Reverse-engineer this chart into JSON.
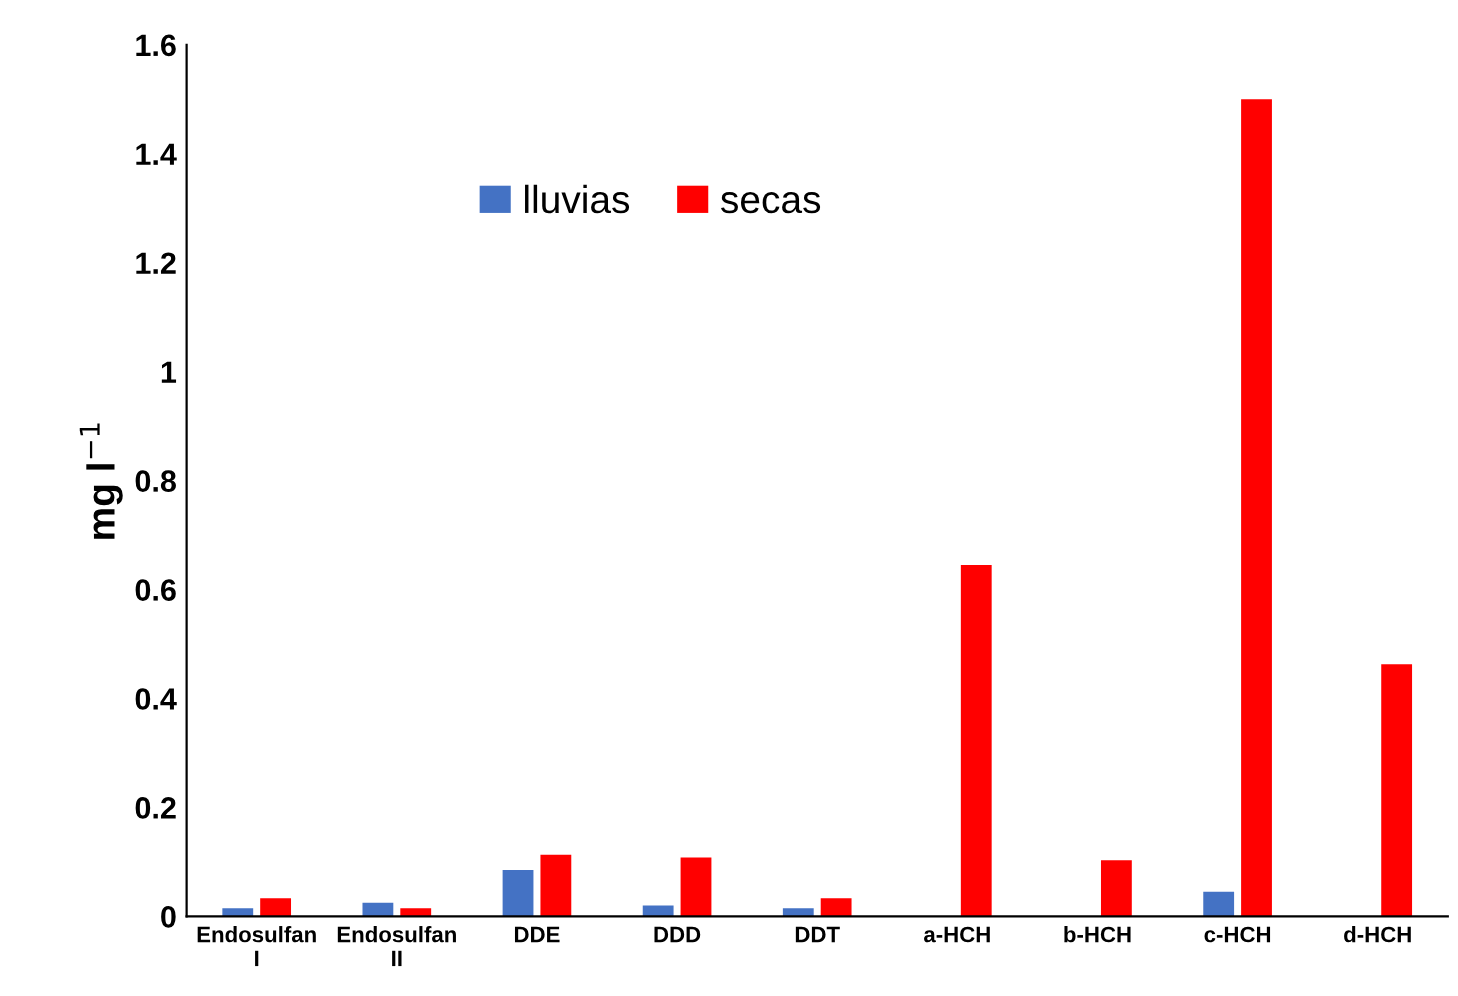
{
  "chart_data": {
    "type": "bar",
    "ylabel": "mg l$^{−1}$",
    "categories": [
      "Endosulfan\nI",
      "Endosulfan\nII",
      "DDE",
      "DDD",
      "DDT",
      "a-HCH",
      "b-HCH",
      "c-HCH",
      "d-HCH"
    ],
    "series": [
      {
        "name": "lluvias",
        "color": "#4472c4",
        "values": [
          0.015,
          0.025,
          0.085,
          0.02,
          0.015,
          null,
          null,
          0.045,
          null
        ]
      },
      {
        "name": "secas",
        "color": "#ff0000",
        "values": [
          0.033,
          0.015,
          0.113,
          0.108,
          0.033,
          0.645,
          0.103,
          1.5,
          0.463
        ]
      }
    ],
    "ylim": [
      0,
      1.6
    ],
    "yticks": [
      0,
      0.2,
      0.4,
      0.6,
      0.8,
      1,
      1.2,
      1.4,
      1.6
    ],
    "grid": false,
    "legend": "top"
  }
}
